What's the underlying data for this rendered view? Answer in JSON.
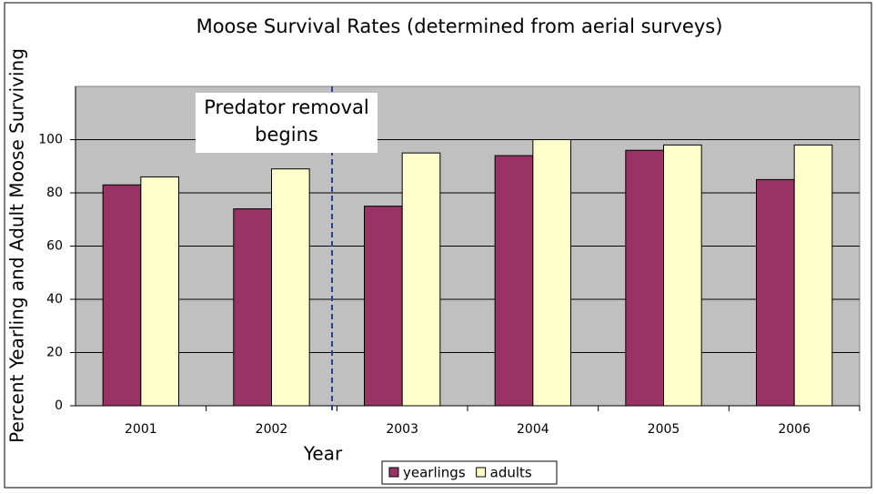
{
  "chart_data": {
    "type": "bar",
    "title": "Moose Survival Rates (determined from aerial surveys)",
    "x_label": "Year",
    "y_label": "Percent Yearling and Adult Moose Surviving",
    "annotation": [
      "Predator removal",
      "begins"
    ],
    "categories": [
      "2001",
      "2002",
      "2003",
      "2004",
      "2005",
      "2006"
    ],
    "series": [
      {
        "name": "yearlings",
        "color": "#993366",
        "values": [
          83,
          74,
          75,
          94,
          96,
          85
        ]
      },
      {
        "name": "adults",
        "color": "#ffffcc",
        "values": [
          86,
          89,
          95,
          100,
          98,
          98
        ]
      }
    ],
    "ylim": [
      0,
      120
    ],
    "yticks": [
      0,
      20,
      40,
      60,
      80,
      100
    ],
    "grid": true,
    "legend": "bottom"
  }
}
